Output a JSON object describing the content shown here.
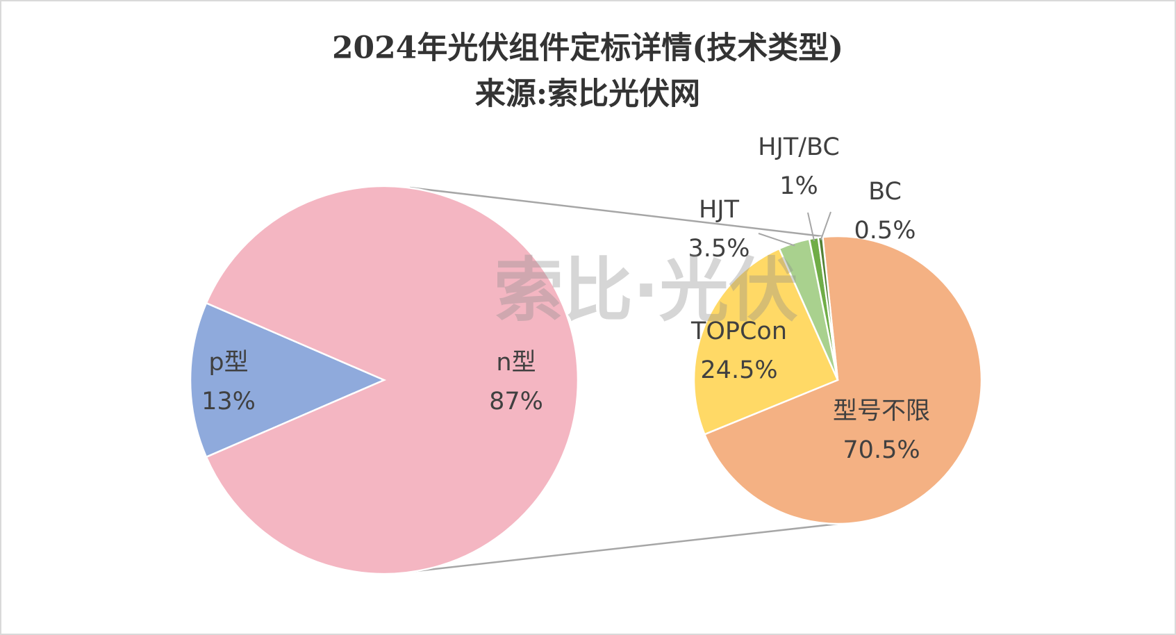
{
  "chart_data": {
    "type": "pie_of_pie",
    "title": "2024年光伏组件定标详情(技术类型)",
    "subtitle": "来源:索比光伏网",
    "watermark": "索比·光伏",
    "pies": [
      {
        "categories": [
          "p型",
          "n型"
        ],
        "values": [
          13,
          87
        ],
        "value_labels": [
          "13%",
          "87%"
        ],
        "colors": [
          "#8faadc",
          "#f4b6c2"
        ]
      },
      {
        "categories": [
          "型号不限",
          "TOPCon",
          "HJT",
          "HJT/BC",
          "BC"
        ],
        "values": [
          70.5,
          24.5,
          3.5,
          1,
          0.5
        ],
        "value_labels": [
          "70.5%",
          "24.5%",
          "3.5%",
          "1%",
          "0.5%"
        ],
        "colors": [
          "#f4b183",
          "#ffd966",
          "#a9d18e",
          "#70ad47",
          "#548235"
        ]
      }
    ]
  }
}
